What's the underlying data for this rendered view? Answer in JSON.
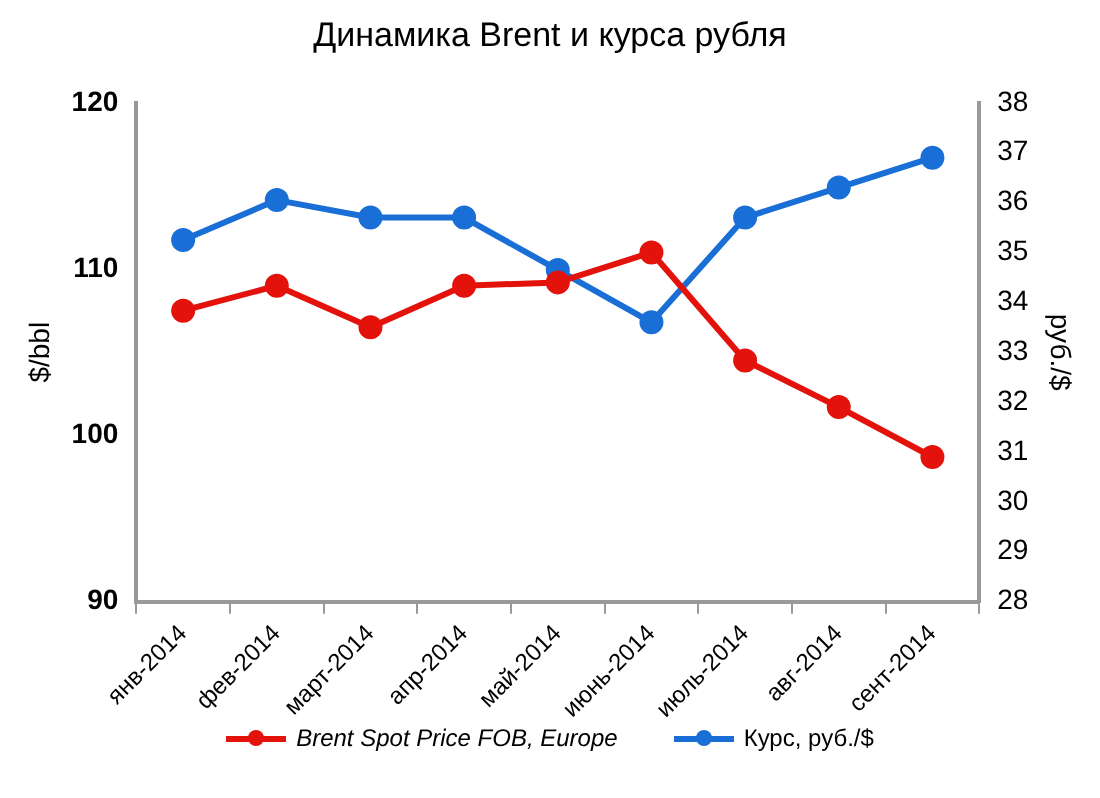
{
  "chart_data": {
    "type": "line",
    "title": "Динамика Brent и курса рубля",
    "ylabel": "$/bbl",
    "y2label": "руб./$",
    "categories": [
      "янв-2014",
      "фев-2014",
      "март-2014",
      "апр-2014",
      "май-2014",
      "июнь-2014",
      "июль-2014",
      "авг-2014",
      "сент-2014"
    ],
    "series": [
      {
        "name": "Brent Spot Price FOB, Europe",
        "color": "#e3120b",
        "values": [
          107.5,
          109.0,
          106.5,
          109.0,
          109.2,
          111.0,
          104.5,
          101.7,
          98.7
        ]
      },
      {
        "name": "Курс, руб./$",
        "color": "#1a6fd6",
        "axis": "y2",
        "values": [
          35.25,
          36.05,
          35.7,
          35.7,
          34.65,
          33.6,
          35.7,
          36.3,
          36.9
        ]
      }
    ],
    "ylim": [
      90,
      120
    ],
    "yticks": [
      90,
      100,
      110,
      120
    ],
    "y2lim": [
      28,
      38
    ],
    "y2ticks": [
      28,
      29,
      30,
      31,
      32,
      33,
      34,
      35,
      36,
      37,
      38
    ],
    "grid": false,
    "legend": "bottom",
    "marker": "circle",
    "line_style": "solid"
  }
}
